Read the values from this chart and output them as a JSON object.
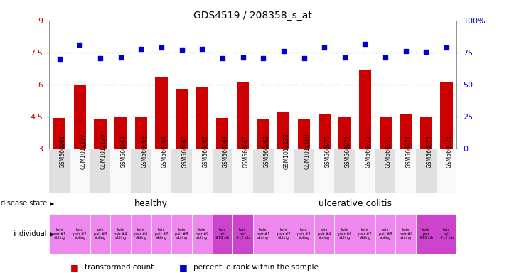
{
  "title": "GDS4519 / 208358_s_at",
  "samples": [
    "GSM560961",
    "GSM1012177",
    "GSM1012179",
    "GSM560962",
    "GSM560963",
    "GSM560964",
    "GSM560965",
    "GSM560966",
    "GSM560967",
    "GSM560968",
    "GSM560969",
    "GSM1012178",
    "GSM1012180",
    "GSM560970",
    "GSM560971",
    "GSM560972",
    "GSM560973",
    "GSM560974",
    "GSM560975",
    "GSM560976"
  ],
  "bar_values": [
    4.45,
    5.97,
    4.42,
    4.5,
    4.5,
    6.35,
    5.8,
    5.9,
    4.45,
    6.1,
    4.4,
    4.75,
    4.38,
    4.6,
    4.5,
    6.65,
    4.48,
    4.62,
    4.5,
    6.1
  ],
  "dot_values": [
    7.2,
    7.85,
    7.22,
    7.25,
    7.65,
    7.72,
    7.62,
    7.68,
    7.22,
    7.27,
    7.22,
    7.55,
    7.22,
    7.72,
    7.25,
    7.88,
    7.25,
    7.55,
    7.52,
    7.72
  ],
  "bar_color": "#cc0000",
  "dot_color": "#0000cc",
  "ylim_left": [
    3.0,
    9.0
  ],
  "ylim_right": [
    0,
    100
  ],
  "yticks_left": [
    3.0,
    4.5,
    6.0,
    7.5,
    9.0
  ],
  "yticks_right": [
    0,
    25,
    50,
    75,
    100
  ],
  "ytick_labels_left": [
    "3",
    "4.5",
    "6",
    "7.5",
    "9"
  ],
  "ytick_labels_right": [
    "0",
    "25",
    "50",
    "75",
    "100%"
  ],
  "hlines": [
    4.5,
    6.0,
    7.5
  ],
  "disease_state_labels": [
    "healthy",
    "ulcerative colitis"
  ],
  "disease_state_color": "#88dd88",
  "individual_labels": [
    "twin\npair #1\nsibling",
    "twin\npair #2\nsibling",
    "twin\npair #3\nsibling",
    "twin\npair #4\nsibling",
    "twin\npair #6\nsibling",
    "twin\npair #7\nsibling",
    "twin\npair #8\nsibling",
    "twin\npair #9\nsibling",
    "twin\npair\n#10 sib",
    "twin\npair\n#12 sib",
    "twin\npair #1\nsibling",
    "twin\npair #2\nsibling",
    "twin\npair #3\nsibling",
    "twin\npair #4\nsibling",
    "twin\npair #6\nsibling",
    "twin\npair #7\nsibling",
    "twin\npair #8\nsibling",
    "twin\npair #9\nsibling",
    "twin\npair\n#10 sib",
    "twin\npair\n#12 sib"
  ],
  "individual_color_pattern": [
    0,
    0,
    0,
    0,
    0,
    0,
    0,
    0,
    1,
    1,
    0,
    0,
    0,
    0,
    0,
    0,
    0,
    0,
    1,
    1
  ],
  "individual_colors": [
    "#ee88ee",
    "#cc44cc"
  ],
  "legend_items": [
    "transformed count",
    "percentile rank within the sample"
  ],
  "legend_colors": [
    "#cc0000",
    "#0000cc"
  ],
  "bg_color": "#ffffff",
  "tick_bg_colors": [
    "#e0e0e0",
    "#f8f8f8"
  ]
}
